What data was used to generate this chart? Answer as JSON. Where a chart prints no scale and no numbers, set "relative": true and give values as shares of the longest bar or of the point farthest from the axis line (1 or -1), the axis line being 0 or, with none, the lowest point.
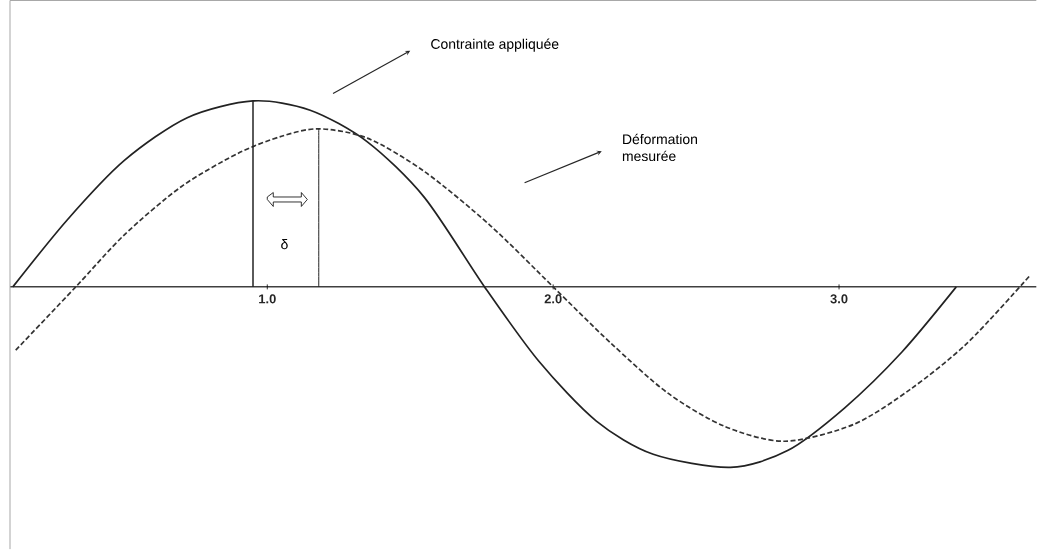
{
  "chart_data": {
    "type": "line",
    "relative": true,
    "xlim": [
      0.1,
      3.69
    ],
    "xticks": [
      {
        "value": 1,
        "label": "1.0"
      },
      {
        "value": 2,
        "label": "2.0"
      },
      {
        "value": 3,
        "label": "3.0"
      }
    ],
    "tick_labels": "x",
    "series": [
      {
        "color": "#222222",
        "line_style": "solid",
        "x": [
          0.11,
          0.3,
          0.5,
          0.72,
          0.95,
          1.15,
          1.35,
          1.55,
          1.76,
          1.95,
          2.15,
          2.35,
          2.62,
          2.82,
          3.02,
          3.22,
          3.41
        ],
        "values": [
          0,
          0.36,
          0.68,
          0.91,
          1.0,
          0.95,
          0.78,
          0.48,
          0,
          -0.4,
          -0.72,
          -0.9,
          -0.97,
          -0.88,
          -0.65,
          -0.35,
          0
        ]
      },
      {
        "color": "#333333",
        "line_style": "dashed",
        "x": [
          0.12,
          0.33,
          0.5,
          0.7,
          0.9,
          1.05,
          1.18,
          1.35,
          1.55,
          1.78,
          2.0,
          2.2,
          2.4,
          2.6,
          2.81,
          3.05,
          3.25,
          3.45,
          3.67
        ],
        "values": [
          -0.34,
          0,
          0.28,
          0.54,
          0.72,
          0.81,
          0.85,
          0.8,
          0.62,
          0.33,
          0,
          -0.3,
          -0.57,
          -0.75,
          -0.83,
          -0.74,
          -0.55,
          -0.3,
          0.065
        ]
      },
      {
        "color": "#222222",
        "line_style": "solid",
        "x": [
          0.95,
          0.95
        ],
        "values": [
          0,
          1.0
        ]
      },
      {
        "color": "#222222",
        "line_style": "solid",
        "x": [
          1.18,
          1.18
        ],
        "values": [
          0,
          0.85
        ]
      }
    ],
    "annotations": [
      "Contrainte appliquée",
      "Déformation mesurée",
      "δ"
    ]
  }
}
